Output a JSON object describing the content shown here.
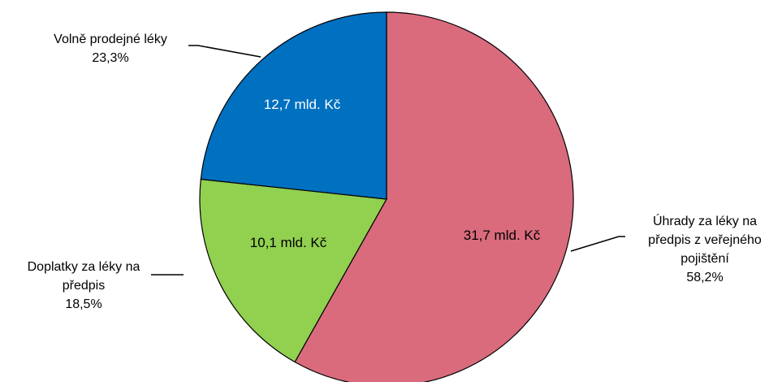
{
  "chart_data": {
    "type": "pie",
    "title": "",
    "start": "12 o'clock, clockwise",
    "slices": [
      {
        "label_lines": [
          "Úhrady za léky na",
          "předpis z veřejného",
          "pojištění"
        ],
        "percent_label": "58,2%",
        "percent": 58.2,
        "value_label": "31,7 mld. Kč",
        "value": 31.7,
        "unit": "mld. Kč",
        "color": "#D96B7D",
        "inner_text_color": "#000000"
      },
      {
        "label_lines": [
          "Doplatky za léky na",
          "předpis"
        ],
        "percent_label": "18,5%",
        "percent": 18.5,
        "value_label": "10,1 mld. Kč",
        "value": 10.1,
        "unit": "mld. Kč",
        "color": "#92D050",
        "inner_text_color": "#000000"
      },
      {
        "label_lines": [
          "Volně prodejné léky"
        ],
        "percent_label": "23,3%",
        "percent": 23.3,
        "value_label": "12,7 mld. Kč",
        "value": 12.7,
        "unit": "mld. Kč",
        "color": "#0070C0",
        "inner_text_color": "#ffffff"
      }
    ]
  }
}
